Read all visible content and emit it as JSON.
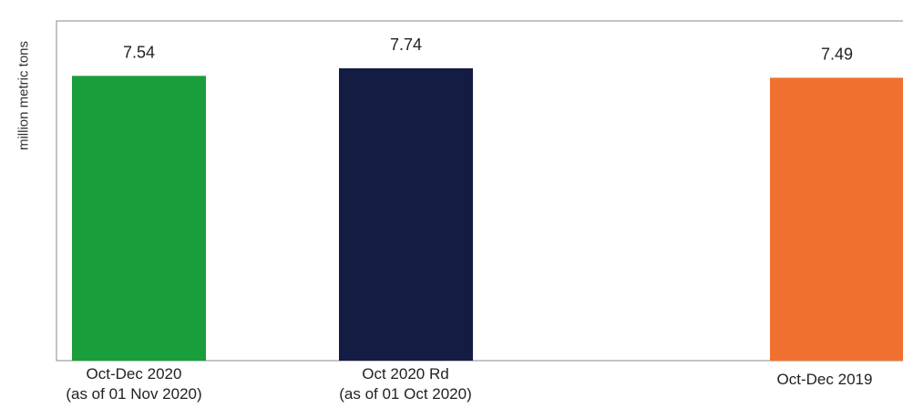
{
  "chart_data": {
    "type": "bar",
    "ylabel": "million metric tons",
    "categories": [
      [
        "Oct-Dec 2020",
        "(as of 01 Nov 2020)"
      ],
      [
        "Oct 2020 Rd",
        "(as of 01 Oct 2020)"
      ],
      [
        "Oct-Dec 2019"
      ]
    ],
    "values": [
      7.54,
      7.74,
      7.49
    ],
    "value_labels": [
      "7.54",
      "7.74",
      "7.49"
    ],
    "colors": [
      "#1a9e3c",
      "#141c44",
      "#f07030"
    ],
    "grid": false,
    "legend": "none"
  }
}
